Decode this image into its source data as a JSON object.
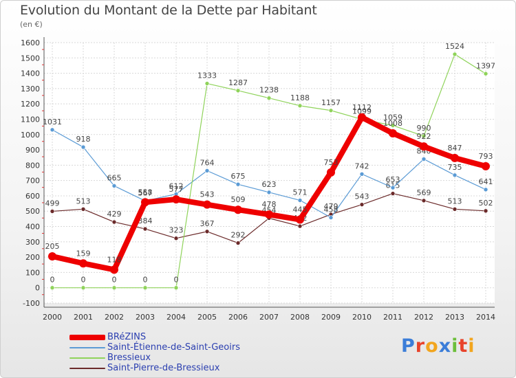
{
  "chart_data": {
    "type": "line",
    "title": "Evolution du Montant de la Dette par Habitant",
    "subtitle": "(en €)",
    "xlabel": "",
    "ylabel": "",
    "categories": [
      "2000",
      "2001",
      "2002",
      "2003",
      "2004",
      "2005",
      "2006",
      "2007",
      "2008",
      "2009",
      "2010",
      "2011",
      "2012",
      "2013",
      "2014"
    ],
    "ylim": [
      -100,
      1600
    ],
    "yticks": [
      -100,
      0,
      100,
      200,
      300,
      400,
      500,
      600,
      700,
      800,
      900,
      1000,
      1100,
      1200,
      1300,
      1400,
      1500,
      1600
    ],
    "grid": true,
    "legend_position": "bottom-left",
    "series": [
      {
        "name": "Saint-Pierre-de-Bressieux",
        "color": "#6b2a2a",
        "values": [
          499,
          513,
          429,
          384,
          323,
          367,
          292,
          454,
          402,
          479,
          543,
          615,
          569,
          513,
          502
        ]
      },
      {
        "name": "Saint-Étienne-de-Saint-Geoirs",
        "color": "#5b9bd5",
        "values": [
          1031,
          918,
          665,
          567,
          612,
          764,
          675,
          623,
          571,
          458,
          742,
          653,
          840,
          735,
          641
        ]
      },
      {
        "name": "Bressieux",
        "color": "#8fd35a",
        "values": [
          0,
          0,
          0,
          0,
          0,
          1333,
          1287,
          1238,
          1188,
          1157,
          1099,
          1059,
          990,
          1524,
          1397
        ]
      },
      {
        "name": "BRéZINS",
        "color": "#ee0000",
        "values": [
          205,
          159,
          118,
          558,
          577,
          543,
          509,
          478,
          445,
          753,
          1112,
          1008,
          922,
          847,
          793
        ]
      }
    ]
  },
  "legend": {
    "items": [
      {
        "label": "BRéZINS",
        "color": "#ee0000"
      },
      {
        "label": "Saint-Étienne-de-Saint-Geoirs",
        "color": "#5b9bd5"
      },
      {
        "label": "Bressieux",
        "color": "#8fd35a"
      },
      {
        "label": "Saint-Pierre-de-Bressieux",
        "color": "#6b2a2a"
      }
    ]
  },
  "logo": {
    "letters": [
      {
        "ch": "P",
        "color": "#3b7dd8"
      },
      {
        "ch": "r",
        "color": "#e8432b"
      },
      {
        "ch": "o",
        "color": "#f2a51e"
      },
      {
        "ch": "x",
        "color": "#3b7dd8"
      },
      {
        "ch": "i",
        "color": "#6cbf3b"
      },
      {
        "ch": "t",
        "color": "#e8432b"
      },
      {
        "ch": "i",
        "color": "#f2a51e"
      }
    ]
  }
}
